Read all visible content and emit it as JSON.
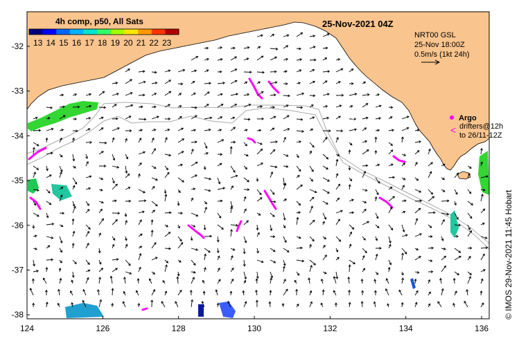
{
  "legend": {
    "title": "4h comp, p50, All Sats",
    "ticks": [
      "13",
      "14",
      "15",
      "16",
      "17",
      "18",
      "19",
      "20",
      "21",
      "22",
      "23"
    ],
    "colors": [
      "#00007f",
      "#0000ff",
      "#0066ff",
      "#00b2ff",
      "#00e5cc",
      "#33ff66",
      "#a3ff00",
      "#ffe600",
      "#ff9900",
      "#ff3300",
      "#b20000"
    ]
  },
  "date_title": "25-Nov-2021 04Z",
  "velocity_note": {
    "line1": "NRT00 GSL",
    "line2": "25-Nov 18:00Z",
    "line3": "0.5m/s (1kt 24h)"
  },
  "argo_label": "Argo",
  "drifters_line1": "drifters@12h",
  "drifters_line2": "to 26/11-12Z",
  "side_label": "© IMOS 29-Nov-2021 11:45 Hobart",
  "axes": {
    "x_ticks": [
      "124",
      "126",
      "128",
      "130",
      "132",
      "134",
      "136"
    ],
    "y_ticks": [
      "-32",
      "-33",
      "-34",
      "-35",
      "-36",
      "-37",
      "-38"
    ]
  },
  "colors": {
    "land": "#f9c48d",
    "sea": "#ffffff",
    "argo": "#ff00ff",
    "bathymetry": "#aaaaaa"
  }
}
